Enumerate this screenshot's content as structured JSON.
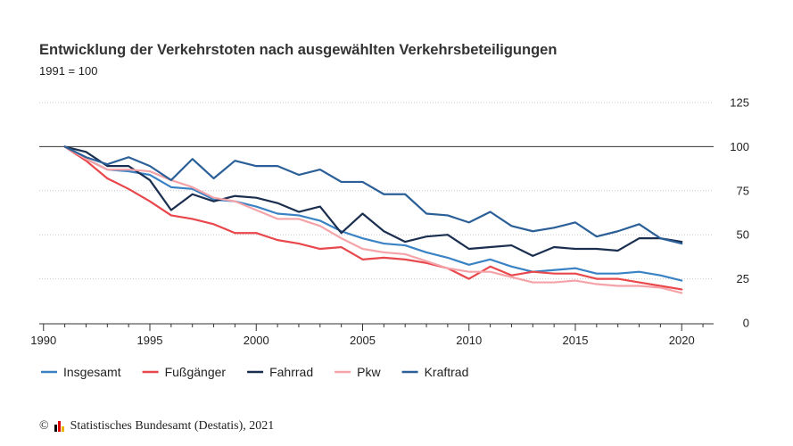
{
  "chart_data": {
    "type": "line",
    "title": "Entwicklung der Verkehrstoten nach ausgewählten Verkehrsbeteiligungen",
    "subtitle": "1991 = 100",
    "x": [
      1991,
      1992,
      1993,
      1994,
      1995,
      1996,
      1997,
      1998,
      1999,
      2000,
      2001,
      2002,
      2003,
      2004,
      2005,
      2006,
      2007,
      2008,
      2009,
      2010,
      2011,
      2012,
      2013,
      2014,
      2015,
      2016,
      2017,
      2018,
      2019,
      2020
    ],
    "xlim": [
      1989.8,
      2021.5
    ],
    "xticks": [
      1990,
      1995,
      2000,
      2005,
      2010,
      2015,
      2020
    ],
    "xtick_labels": [
      "1990",
      "1995",
      "2000",
      "2005",
      "2010",
      "2015",
      "2020"
    ],
    "ylim": [
      0,
      125
    ],
    "yticks": [
      0,
      25,
      50,
      75,
      100,
      125
    ],
    "ytick_labels": [
      "0",
      "25",
      "50",
      "75",
      "100",
      "125"
    ],
    "reference_line": 100,
    "grid": "horizontal dotted",
    "legend_position": "bottom",
    "series": [
      {
        "name": "Insgesamt",
        "color": "#3a82c4",
        "values": [
          100,
          93,
          87,
          86,
          84,
          77,
          76,
          70,
          69,
          66,
          62,
          61,
          58,
          52,
          48,
          45,
          44,
          40,
          37,
          33,
          36,
          32,
          29,
          30,
          31,
          28,
          28,
          29,
          27,
          24
        ]
      },
      {
        "name": "Fußgänger",
        "color": "#e8474b",
        "values": [
          100,
          92,
          82,
          76,
          69,
          61,
          59,
          56,
          51,
          51,
          47,
          45,
          42,
          43,
          36,
          37,
          36,
          34,
          31,
          25,
          32,
          27,
          29,
          28,
          28,
          25,
          25,
          23,
          21,
          19
        ]
      },
      {
        "name": "Fahrrad",
        "color": "#1a2e4f",
        "values": [
          100,
          97,
          89,
          89,
          81,
          64,
          73,
          69,
          72,
          71,
          68,
          63,
          66,
          51,
          62,
          52,
          46,
          49,
          50,
          42,
          43,
          44,
          38,
          43,
          42,
          42,
          41,
          48,
          48,
          46
        ]
      },
      {
        "name": "Pkw",
        "color": "#f4a3a8",
        "values": [
          100,
          93,
          87,
          87,
          86,
          81,
          77,
          71,
          69,
          64,
          59,
          59,
          55,
          48,
          42,
          40,
          39,
          35,
          31,
          29,
          29,
          26,
          23,
          23,
          24,
          22,
          21,
          21,
          20,
          17
        ]
      },
      {
        "name": "Kraftrad",
        "color": "#2b5f97",
        "values": [
          100,
          94,
          90,
          94,
          89,
          81,
          93,
          82,
          92,
          89,
          89,
          84,
          87,
          80,
          80,
          73,
          73,
          62,
          61,
          57,
          63,
          55,
          52,
          54,
          57,
          49,
          52,
          56,
          48,
          45
        ]
      }
    ]
  },
  "footer": {
    "copyright_symbol": "©",
    "source": "Statistisches Bundesamt (Destatis), 2021",
    "logo_icon": "destatis-flag-bars-icon"
  }
}
